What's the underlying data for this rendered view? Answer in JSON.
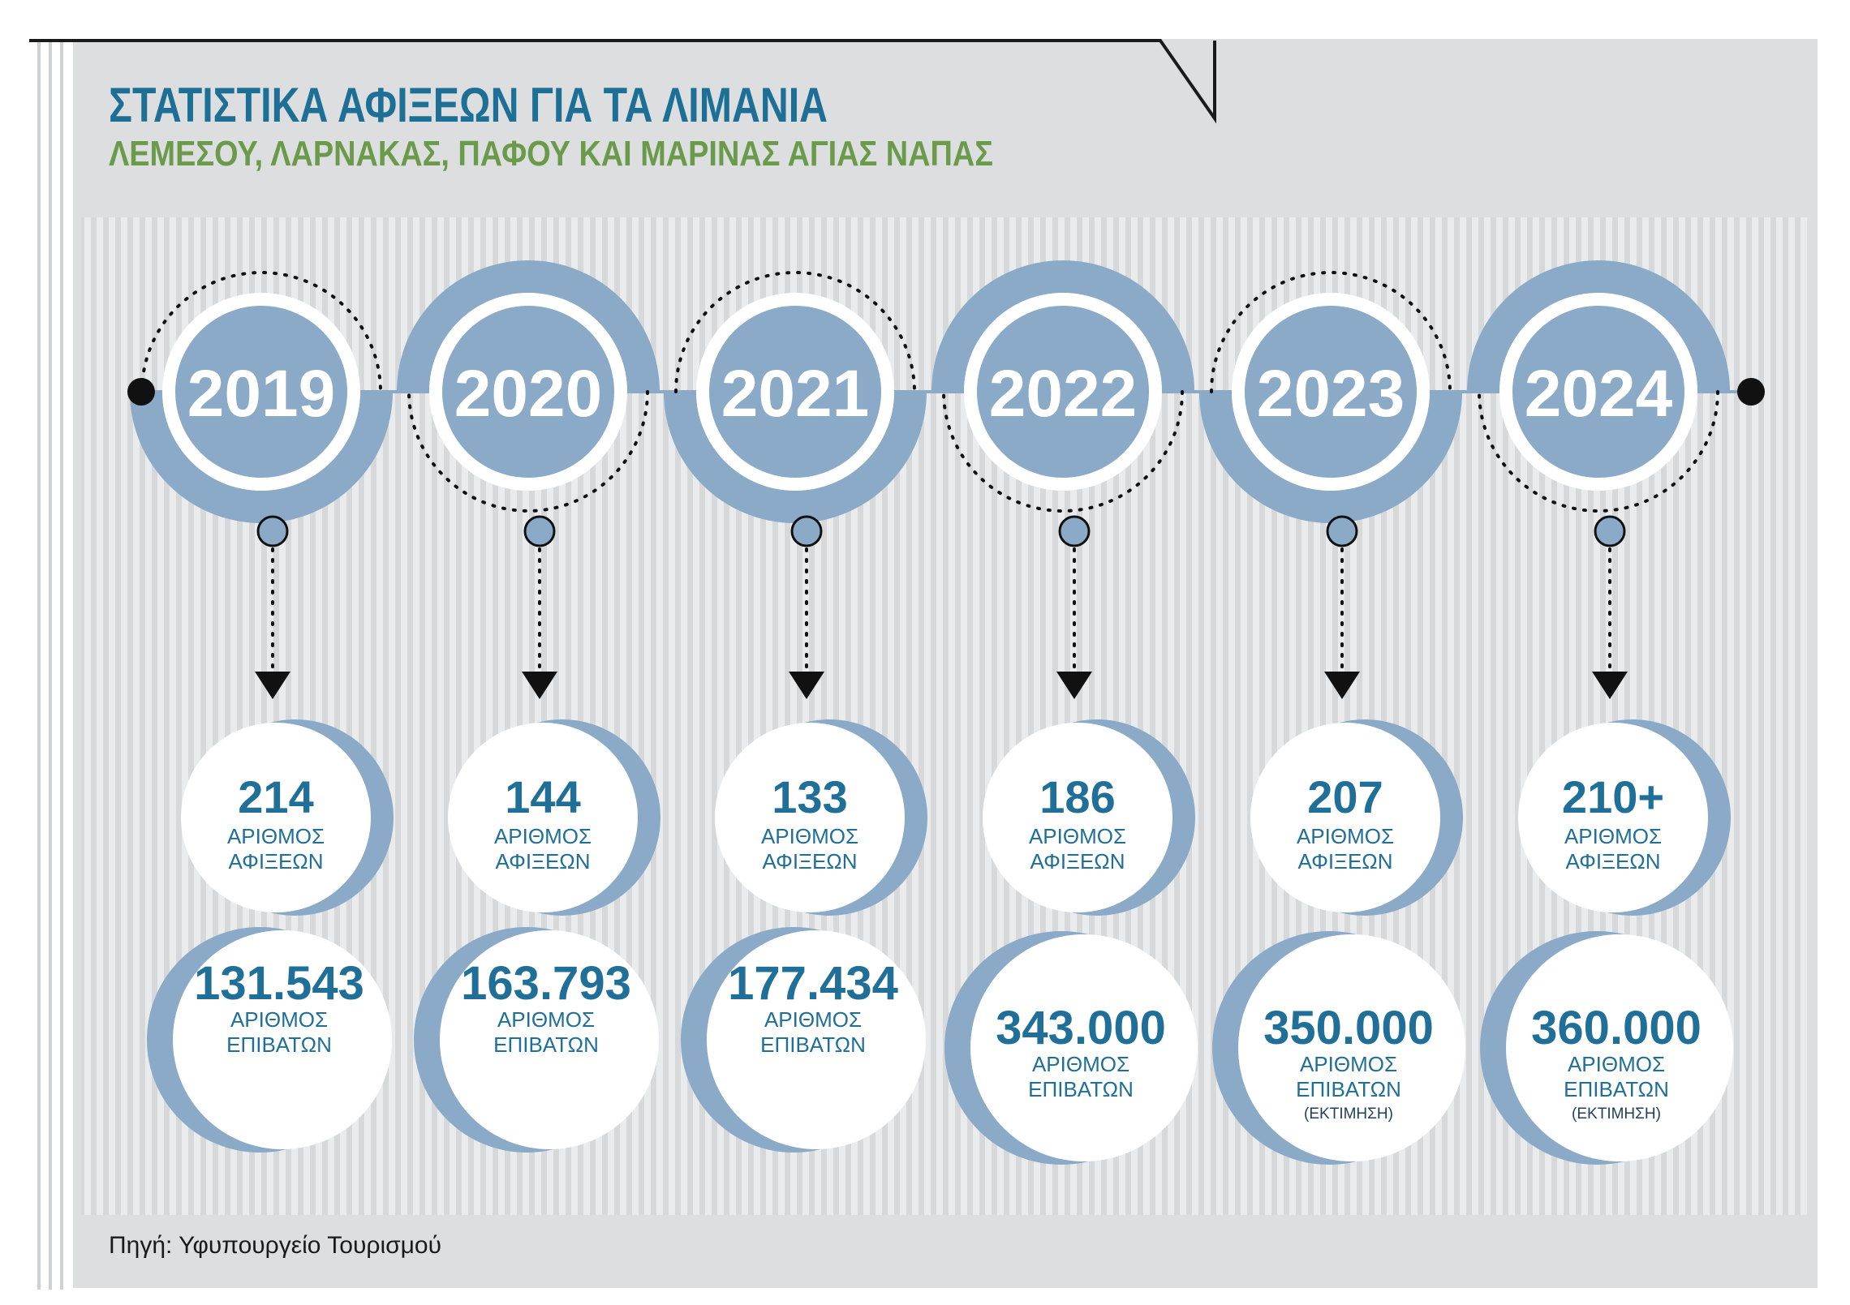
{
  "header": {
    "title": "ΣΤΑΤΙΣΤΙΚΑ ΑΦΙΞΕΩΝ ΓΙΑ ΤΑ ΛΙΜΑΝΙΑ",
    "subtitle": "ΛΕΜΕΣΟΥ, ΛΑΡΝΑΚΑΣ, ΠΑΦΟΥ ΚΑΙ ΜΑΡΙΝΑΣ ΑΓΙΑΣ ΝΑΠΑΣ"
  },
  "labels": {
    "arrivals": "ΑΡΙΘΜΟΣ ΑΦΙΞΕΩΝ",
    "arrivals_line1": "ΑΡΙΘΜΟΣ",
    "arrivals_line2": "ΑΦΙΞΕΩΝ",
    "passengers_line1": "ΑΡΙΘΜΟΣ",
    "passengers_line2": "ΕΠΙΒΑΤΩΝ",
    "estimate": "(ΕΚΤΙΜΗΣΗ)"
  },
  "source": "Πηγή: Υφυπουργείο Τουρισμού",
  "colors": {
    "title": "#1e6f96",
    "subtitle": "#6a9a4a",
    "accent": "#8aaac7",
    "number": "#1f6f98",
    "panel": "#dcdee0",
    "stripes": "#e9ebec"
  },
  "chart_data": {
    "type": "table",
    "title": "ΣΤΑΤΙΣΤΙΚΑ ΑΦΙΞΕΩΝ ΓΙΑ ΤΑ ΛΙΜΑΝΙΑ ΛΕΜΕΣΟΥ, ΛΑΡΝΑΚΑΣ, ΠΑΦΟΥ ΚΑΙ ΜΑΡΙΝΑΣ ΑΓΙΑΣ ΝΑΠΑΣ",
    "categories": [
      "2019",
      "2020",
      "2021",
      "2022",
      "2023",
      "2024"
    ],
    "series": [
      {
        "name": "ΑΡΙΘΜΟΣ ΑΦΙΞΕΩΝ",
        "values": [
          214,
          144,
          133,
          186,
          207,
          210
        ],
        "display": [
          "214",
          "144",
          "133",
          "186",
          "207",
          "210+"
        ]
      },
      {
        "name": "ΑΡΙΘΜΟΣ ΕΠΙΒΑΤΩΝ",
        "values": [
          131543,
          163793,
          177434,
          343000,
          350000,
          360000
        ],
        "display": [
          "131.543",
          "163.793",
          "177.434",
          "343.000",
          "350.000",
          "360.000"
        ],
        "estimate": [
          false,
          false,
          false,
          false,
          true,
          true
        ]
      }
    ]
  }
}
